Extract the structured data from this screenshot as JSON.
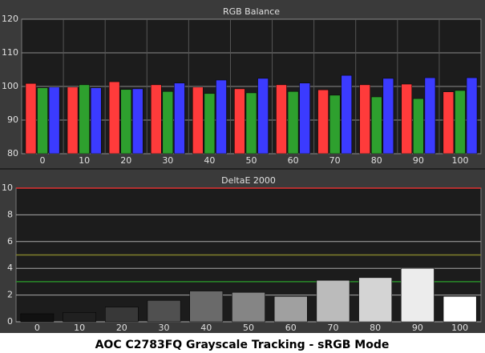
{
  "caption": "AOC C2783FQ Grayscale Tracking - sRGB Mode",
  "chart_data": [
    {
      "type": "bar",
      "title": "RGB Balance",
      "categories": [
        "0",
        "10",
        "20",
        "30",
        "40",
        "50",
        "60",
        "70",
        "80",
        "90",
        "100"
      ],
      "series": [
        {
          "color": "#ff3b3b",
          "values": [
            100.9,
            99.8,
            101.4,
            100.5,
            99.8,
            99.3,
            100.5,
            99.0,
            100.5,
            100.7,
            98.4
          ]
        },
        {
          "color": "#2ea02e",
          "values": [
            99.6,
            100.5,
            99.1,
            98.5,
            97.9,
            98.1,
            98.5,
            97.4,
            96.9,
            96.4,
            98.8
          ]
        },
        {
          "color": "#3b3bff",
          "values": [
            99.8,
            99.6,
            99.3,
            101.0,
            101.9,
            102.4,
            101.0,
            103.3,
            102.4,
            102.6,
            102.6
          ]
        }
      ],
      "ylim": [
        80,
        120
      ],
      "yticks": [
        80,
        90,
        100,
        110,
        120
      ],
      "grid": true
    },
    {
      "type": "bar",
      "title": "DeltaE 2000",
      "categories": [
        "0",
        "10",
        "20",
        "30",
        "40",
        "50",
        "60",
        "70",
        "80",
        "90",
        "100"
      ],
      "values": [
        0.6,
        0.7,
        1.1,
        1.6,
        2.3,
        2.2,
        1.9,
        3.1,
        3.3,
        4.0,
        1.9
      ],
      "colors": [
        "#111111",
        "#202020",
        "#383838",
        "#505050",
        "#6a6a6a",
        "#858585",
        "#a0a0a0",
        "#bbbbbb",
        "#d4d4d4",
        "#ececec",
        "#ffffff"
      ],
      "ylim": [
        0,
        10
      ],
      "yticks": [
        0,
        2,
        4,
        6,
        8,
        10
      ],
      "grid": true,
      "reference_lines": [
        {
          "value": 10,
          "color": "#e03030"
        },
        {
          "value": 5,
          "color": "#80802a"
        },
        {
          "value": 3,
          "color": "#2a8c2a"
        }
      ]
    }
  ]
}
